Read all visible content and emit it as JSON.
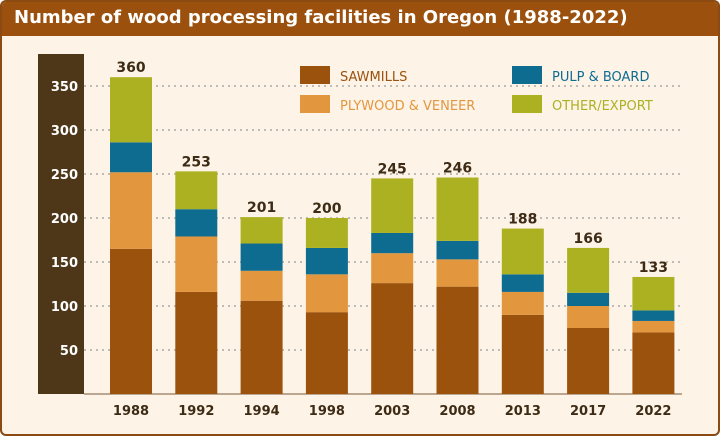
{
  "title": "Number of wood processing facilities in Oregon (1988-2022)",
  "colors": {
    "sawmills": "#9b520d",
    "plywood": "#e2973f",
    "pulp": "#0f6c91",
    "other": "#acb122",
    "axis_band": "#4e3719",
    "grid": "#9a9a9a",
    "background": "#fdf3e7"
  },
  "chart_data": {
    "type": "bar",
    "stacked": true,
    "categories": [
      "1988",
      "1992",
      "1994",
      "1998",
      "2003",
      "2008",
      "2013",
      "2017",
      "2022"
    ],
    "series": [
      {
        "name": "SAWMILLS",
        "color": "#9b520d",
        "values": [
          165,
          116,
          106,
          93,
          126,
          122,
          90,
          75,
          70
        ]
      },
      {
        "name": "PLYWOOD & VENEER",
        "color": "#e2973f",
        "values": [
          87,
          63,
          34,
          43,
          34,
          31,
          26,
          25,
          13
        ]
      },
      {
        "name": "PULP & BOARD",
        "color": "#0f6c91",
        "values": [
          34,
          31,
          31,
          30,
          23,
          21,
          20,
          15,
          12
        ]
      },
      {
        "name": "OTHER/EXPORT",
        "color": "#acb122",
        "values": [
          74,
          43,
          30,
          34,
          62,
          72,
          52,
          51,
          38
        ]
      }
    ],
    "totals": [
      "360",
      "253",
      "201",
      "200",
      "245",
      "246",
      "188",
      "166",
      "133"
    ],
    "yticks": [
      "50",
      "100",
      "150",
      "200",
      "250",
      "300",
      "350"
    ],
    "ylim": [
      0,
      375
    ],
    "grid": true,
    "legend": "top-right"
  }
}
